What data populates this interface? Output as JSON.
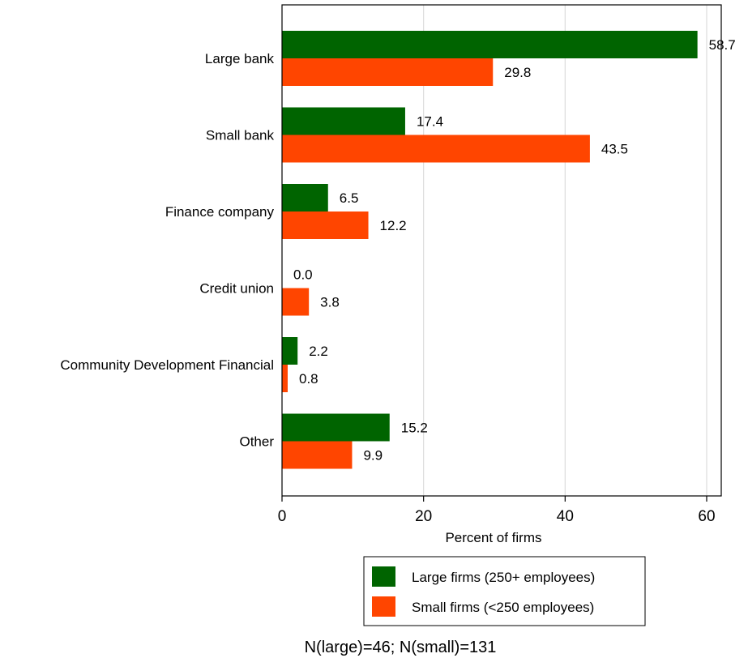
{
  "chart_data": {
    "type": "bar",
    "orientation": "horizontal",
    "categories": [
      "Large bank",
      "Small bank",
      "Finance company",
      "Credit union",
      "Community Development Financial",
      "Other"
    ],
    "series": [
      {
        "name": "Large firms (250+ employees)",
        "color": "#006400",
        "values": [
          58.7,
          17.4,
          6.5,
          0.0,
          2.2,
          15.2
        ]
      },
      {
        "name": "Small firms (<250 employees)",
        "color": "#ff4500",
        "values": [
          29.8,
          43.5,
          12.2,
          3.8,
          0.8,
          9.9
        ]
      }
    ],
    "value_labels": [
      [
        "58.7",
        "17.4",
        "6.5",
        "0.0",
        "2.2",
        "15.2"
      ],
      [
        "29.8",
        "43.5",
        "12.2",
        "3.8",
        "0.8",
        "9.9"
      ]
    ],
    "xlabel": "Percent of firms",
    "xlim": [
      0,
      60
    ],
    "xticks": [
      0,
      20,
      40,
      60
    ],
    "xtick_labels": [
      "0",
      "20",
      "40",
      "60"
    ],
    "grid": true,
    "legend_position": "bottom",
    "note": "N(large)=46; N(small)=131"
  }
}
